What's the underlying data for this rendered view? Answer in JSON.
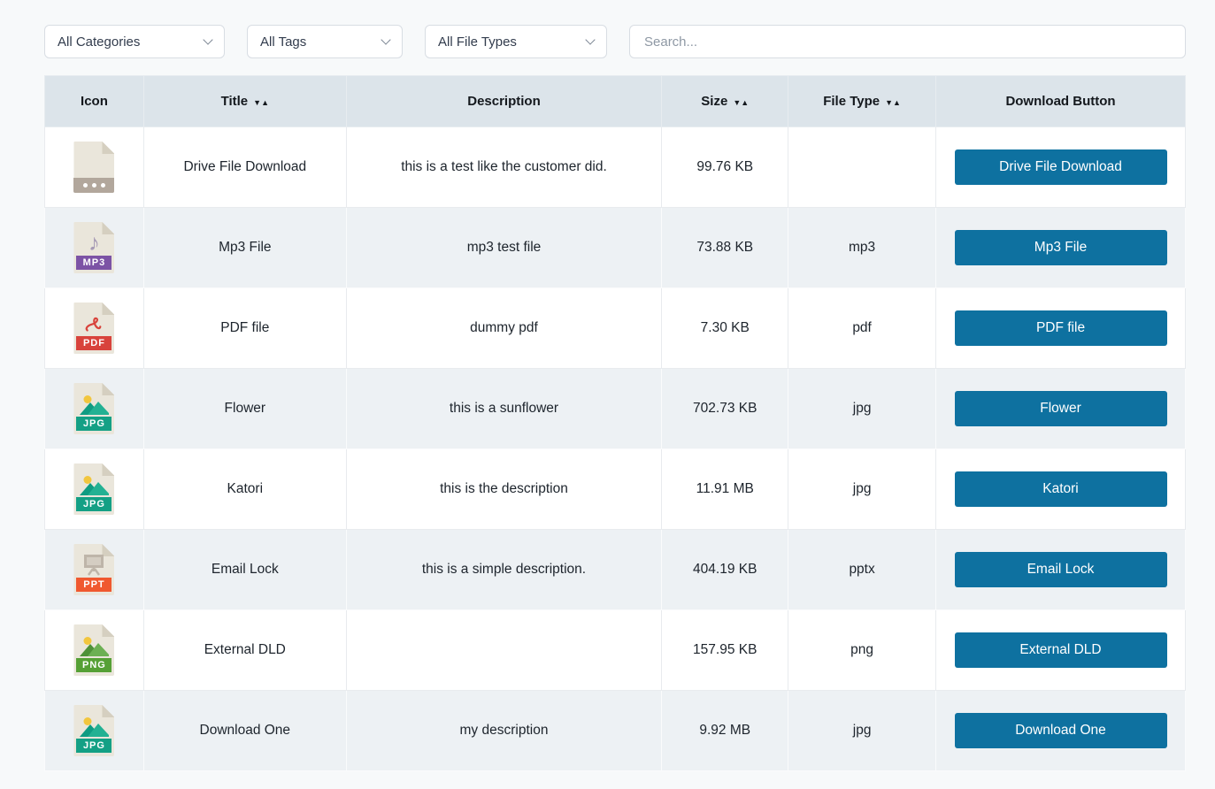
{
  "filters": {
    "categories": {
      "value": "All Categories"
    },
    "tags": {
      "value": "All Tags"
    },
    "file_types": {
      "value": "All File Types"
    },
    "search": {
      "placeholder": "Search..."
    }
  },
  "table": {
    "sort_indicator": {
      "desc": "▼",
      "asc": "▲"
    },
    "columns": [
      {
        "label": "Icon",
        "sortable": false
      },
      {
        "label": "Title",
        "sortable": true
      },
      {
        "label": "Description",
        "sortable": false
      },
      {
        "label": "Size",
        "sortable": true
      },
      {
        "label": "File Type",
        "sortable": true
      },
      {
        "label": "Download Button",
        "sortable": false
      }
    ],
    "rows": [
      {
        "icon": "generic-file-icon",
        "icon_label": "",
        "title": "Drive File Download",
        "description": "this is a test like the customer did.",
        "size": "99.76 KB",
        "file_type": "",
        "button_label": "Drive File Download"
      },
      {
        "icon": "mp3-file-icon",
        "icon_label": "MP3",
        "title": "Mp3 File",
        "description": "mp3 test file",
        "size": "73.88 KB",
        "file_type": "mp3",
        "button_label": "Mp3 File"
      },
      {
        "icon": "pdf-file-icon",
        "icon_label": "PDF",
        "title": "PDF file",
        "description": "dummy pdf",
        "size": "7.30 KB",
        "file_type": "pdf",
        "button_label": "PDF file"
      },
      {
        "icon": "jpg-file-icon",
        "icon_label": "JPG",
        "title": "Flower",
        "description": "this is a sunflower",
        "size": "702.73 KB",
        "file_type": "jpg",
        "button_label": "Flower"
      },
      {
        "icon": "jpg-file-icon",
        "icon_label": "JPG",
        "title": "Katori",
        "description": "this is the description",
        "size": "11.91 MB",
        "file_type": "jpg",
        "button_label": "Katori"
      },
      {
        "icon": "ppt-file-icon",
        "icon_label": "PPT",
        "title": "Email Lock",
        "description": "this is a simple description.",
        "size": "404.19 KB",
        "file_type": "pptx",
        "button_label": "Email Lock"
      },
      {
        "icon": "png-file-icon",
        "icon_label": "PNG",
        "title": "External DLD",
        "description": "",
        "size": "157.95 KB",
        "file_type": "png",
        "button_label": "External DLD"
      },
      {
        "icon": "jpg-file-icon",
        "icon_label": "JPG",
        "title": "Download One",
        "description": "my description",
        "size": "9.92 MB",
        "file_type": "jpg",
        "button_label": "Download One"
      }
    ]
  },
  "colors": {
    "accent_button": "#0e71a0",
    "header_bg": "#dce4ea",
    "row_stripe": "#edf1f4",
    "page_bg": "#f7f9fa"
  }
}
